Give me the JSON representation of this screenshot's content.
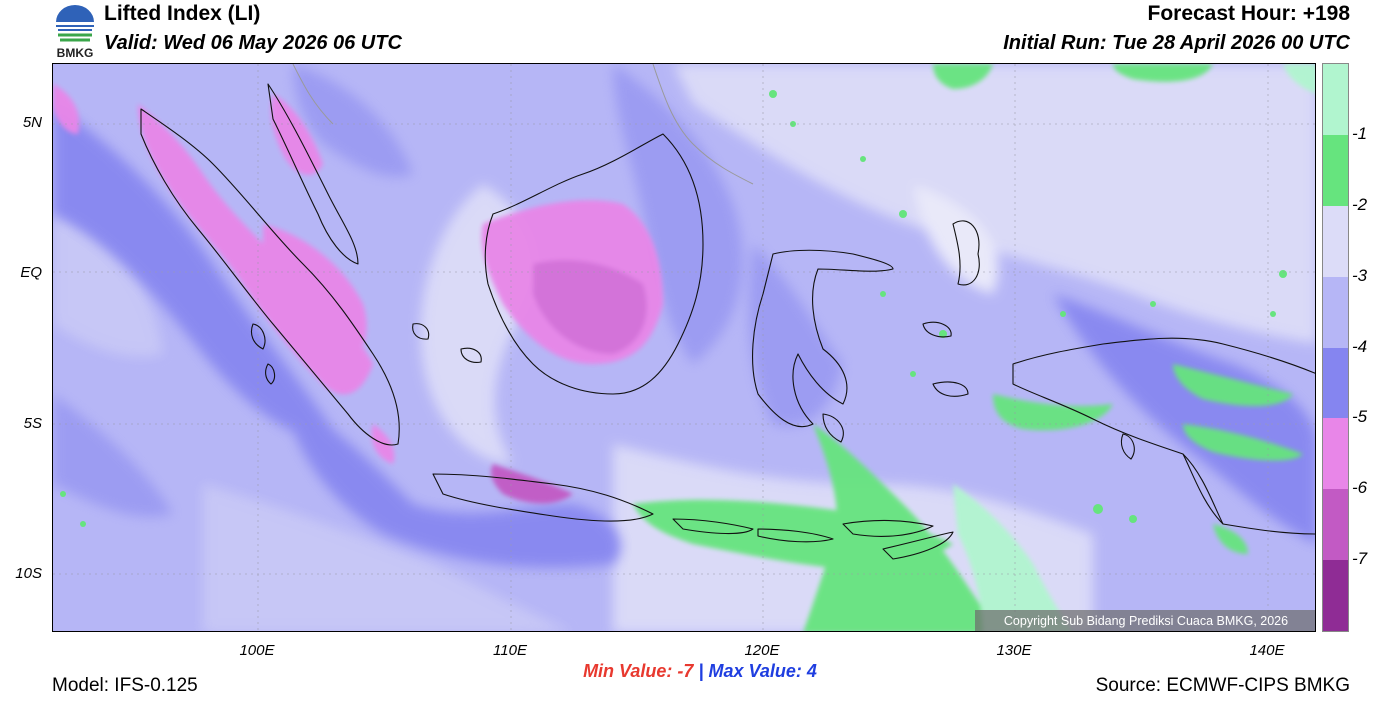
{
  "header": {
    "title": "Lifted Index (LI)",
    "valid": "Valid: Wed 06 May 2026 06 UTC",
    "forecast_hour": "Forecast Hour: +198",
    "initial_run": "Initial Run: Tue 28 April 2026 00 UTC",
    "logo_text": "BMKG"
  },
  "map": {
    "lat_labels": [
      "5N",
      "EQ",
      "5S",
      "10S"
    ],
    "lon_labels": [
      "100E",
      "110E",
      "120E",
      "130E",
      "140E"
    ],
    "copyright": "Copyright Sub Bidang Prediksi Cuaca BMKG, 2026"
  },
  "stats": {
    "min_label": "Min Value:",
    "min_value": "-7",
    "separator": "|",
    "max_label": "Max Value:",
    "max_value": "4"
  },
  "footer": {
    "model": "Model: IFS-0.125",
    "source": "Source: ECMWF-CIPS BMKG"
  },
  "colorbar": {
    "labels": [
      "-1",
      "-2",
      "-3",
      "-4",
      "-5",
      "-6",
      "-7"
    ],
    "colors": [
      "#b1f5cf",
      "#66e47e",
      "#dcdcf8",
      "#b6b6f6",
      "#8585f0",
      "#e886e8",
      "#c25ac4",
      "#8f2c95"
    ]
  }
}
